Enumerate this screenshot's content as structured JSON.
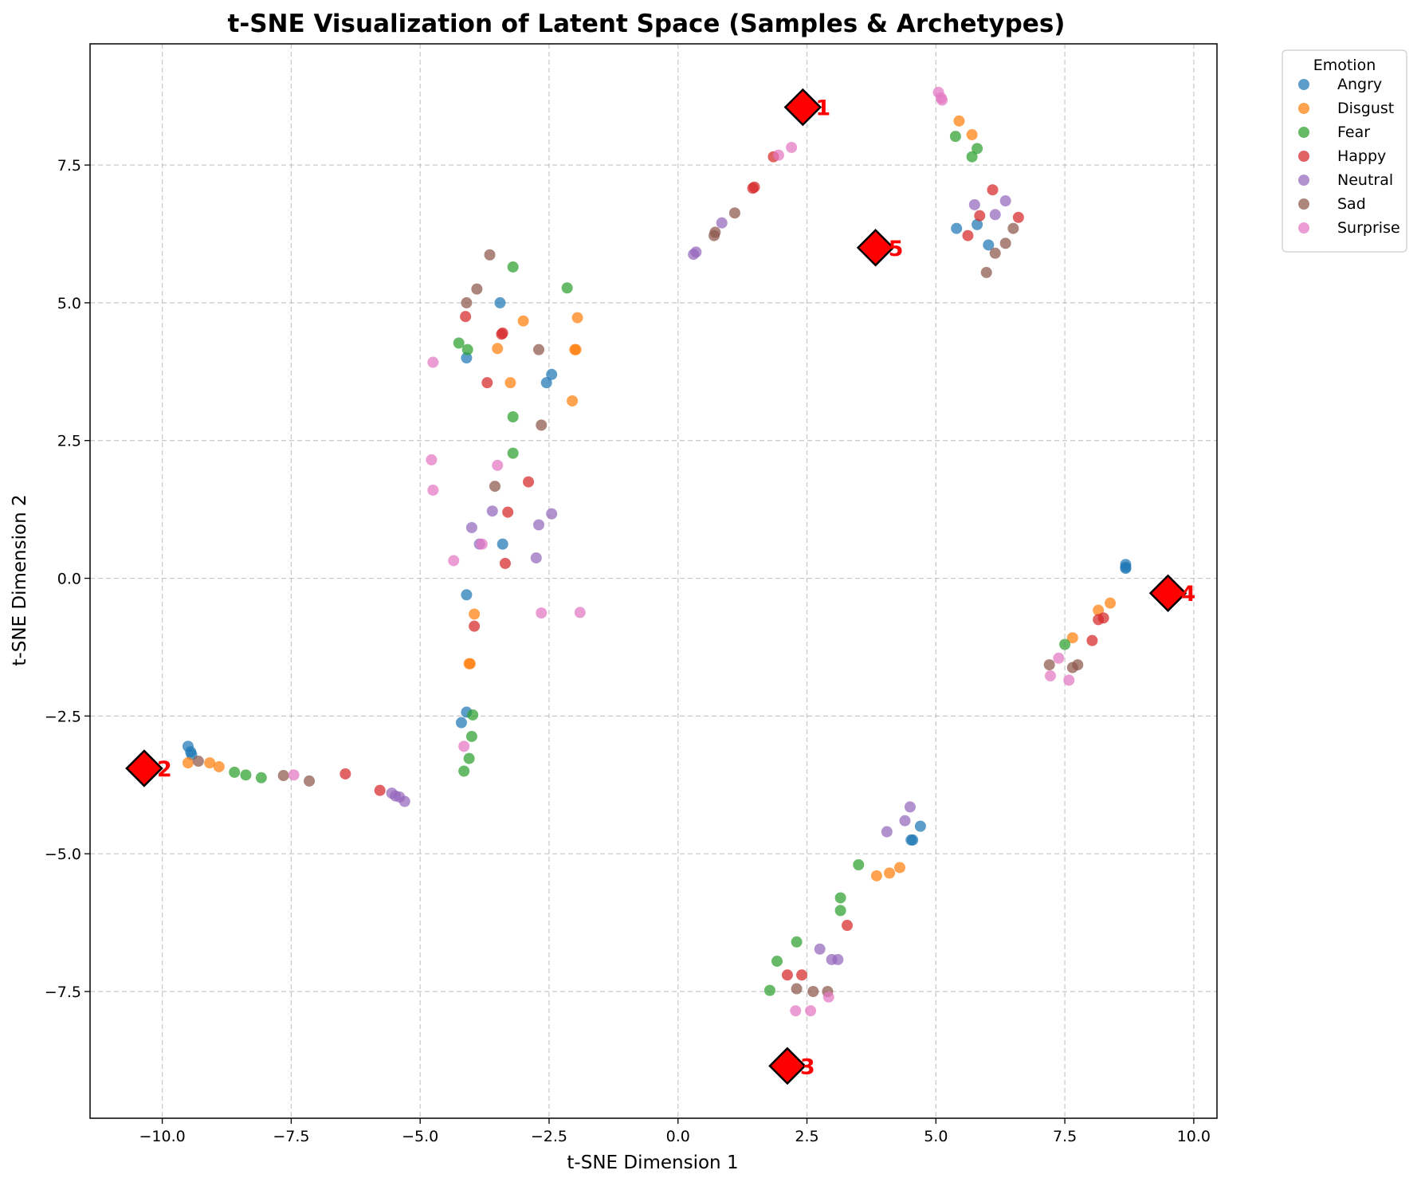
{
  "chart_data": {
    "type": "scatter",
    "title": "t-SNE Visualization of Latent Space (Samples & Archetypes)",
    "xlabel": "t-SNE Dimension 1",
    "ylabel": "t-SNE Dimension 2",
    "xlim": [
      -11.4,
      10.45
    ],
    "ylim": [
      -9.8,
      9.7
    ],
    "xticks": [
      -10.0,
      -7.5,
      -5.0,
      -2.5,
      0.0,
      2.5,
      5.0,
      7.5,
      10.0
    ],
    "yticks": [
      -7.5,
      -5.0,
      -2.5,
      0.0,
      2.5,
      5.0,
      7.5
    ],
    "xtick_labels": [
      "−10.0",
      "−7.5",
      "−5.0",
      "−2.5",
      "0.0",
      "2.5",
      "5.0",
      "7.5",
      "10.0"
    ],
    "ytick_labels": [
      "−7.5",
      "−5.0",
      "−2.5",
      "0.0",
      "2.5",
      "5.0",
      "7.5"
    ],
    "grid": true,
    "legend": {
      "title": "Emotion",
      "placement": "outside-top-right"
    },
    "series": [
      {
        "name": "Angry",
        "color": "#1f77b4",
        "points": [
          [
            -9.5,
            -3.05
          ],
          [
            -9.45,
            -3.15
          ],
          [
            -9.43,
            -3.2
          ],
          [
            -4.1,
            4.0
          ],
          [
            -3.45,
            5.0
          ],
          [
            -2.45,
            3.7
          ],
          [
            -2.55,
            3.55
          ],
          [
            -3.4,
            0.62
          ],
          [
            -4.1,
            -0.3
          ],
          [
            -4.1,
            -2.43
          ],
          [
            -4.2,
            -2.62
          ],
          [
            5.4,
            6.35
          ],
          [
            5.8,
            6.42
          ],
          [
            6.02,
            6.05
          ],
          [
            8.68,
            0.25
          ],
          [
            8.68,
            0.2
          ],
          [
            8.68,
            0.18
          ],
          [
            4.52,
            -4.75
          ],
          [
            4.55,
            -4.75
          ],
          [
            4.7,
            -4.5
          ]
        ]
      },
      {
        "name": "Disgust",
        "color": "#ff7f0e",
        "points": [
          [
            -9.5,
            -3.35
          ],
          [
            -9.08,
            -3.35
          ],
          [
            -8.9,
            -3.42
          ],
          [
            -3.0,
            4.67
          ],
          [
            -3.5,
            4.17
          ],
          [
            -3.25,
            3.55
          ],
          [
            -1.95,
            4.73
          ],
          [
            -2.0,
            4.15
          ],
          [
            -1.98,
            4.15
          ],
          [
            -2.05,
            3.22
          ],
          [
            -3.95,
            -0.65
          ],
          [
            -4.05,
            -1.55
          ],
          [
            -4.03,
            -1.55
          ],
          [
            5.45,
            8.3
          ],
          [
            5.7,
            8.05
          ],
          [
            7.65,
            -1.08
          ],
          [
            8.15,
            -0.58
          ],
          [
            8.38,
            -0.45
          ],
          [
            3.85,
            -5.4
          ],
          [
            4.1,
            -5.35
          ],
          [
            4.3,
            -5.25
          ]
        ]
      },
      {
        "name": "Fear",
        "color": "#2ca02c",
        "points": [
          [
            -8.6,
            -3.52
          ],
          [
            -8.38,
            -3.57
          ],
          [
            -8.08,
            -3.62
          ],
          [
            -3.2,
            5.65
          ],
          [
            -2.15,
            5.27
          ],
          [
            -4.25,
            4.27
          ],
          [
            -4.08,
            4.15
          ],
          [
            -3.2,
            2.93
          ],
          [
            -3.2,
            2.27
          ],
          [
            -3.98,
            -2.48
          ],
          [
            -4.0,
            -2.87
          ],
          [
            -4.05,
            -3.27
          ],
          [
            -4.15,
            -3.5
          ],
          [
            5.38,
            8.02
          ],
          [
            5.8,
            7.8
          ],
          [
            5.7,
            7.65
          ],
          [
            7.5,
            -1.2
          ],
          [
            3.5,
            -5.2
          ],
          [
            3.15,
            -5.8
          ],
          [
            3.15,
            -6.03
          ],
          [
            2.3,
            -6.6
          ],
          [
            1.92,
            -6.95
          ],
          [
            1.78,
            -7.48
          ]
        ]
      },
      {
        "name": "Happy",
        "color": "#d62728",
        "points": [
          [
            -6.45,
            -3.55
          ],
          [
            -5.78,
            -3.85
          ],
          [
            -4.12,
            4.75
          ],
          [
            -3.4,
            4.45
          ],
          [
            -3.42,
            4.43
          ],
          [
            -3.7,
            3.55
          ],
          [
            -2.9,
            1.75
          ],
          [
            -3.3,
            1.2
          ],
          [
            -3.35,
            0.27
          ],
          [
            -3.95,
            -0.87
          ],
          [
            1.45,
            7.08
          ],
          [
            1.48,
            7.1
          ],
          [
            1.85,
            7.65
          ],
          [
            6.1,
            7.05
          ],
          [
            5.85,
            6.58
          ],
          [
            5.62,
            6.22
          ],
          [
            6.6,
            6.55
          ],
          [
            8.03,
            -1.13
          ],
          [
            8.15,
            -0.75
          ],
          [
            8.25,
            -0.72
          ],
          [
            3.28,
            -6.3
          ],
          [
            2.12,
            -7.2
          ],
          [
            2.4,
            -7.2
          ]
        ]
      },
      {
        "name": "Neutral",
        "color": "#9467bd",
        "points": [
          [
            -5.55,
            -3.9
          ],
          [
            -5.48,
            -3.95
          ],
          [
            -5.4,
            -3.97
          ],
          [
            -5.3,
            -4.05
          ],
          [
            -3.6,
            1.22
          ],
          [
            -2.45,
            1.17
          ],
          [
            -2.7,
            0.97
          ],
          [
            -4.0,
            0.92
          ],
          [
            -3.85,
            0.62
          ],
          [
            -2.75,
            0.37
          ],
          [
            0.3,
            5.88
          ],
          [
            0.35,
            5.92
          ],
          [
            0.85,
            6.45
          ],
          [
            5.75,
            6.78
          ],
          [
            6.15,
            6.6
          ],
          [
            6.35,
            6.85
          ],
          [
            4.5,
            -4.15
          ],
          [
            4.4,
            -4.4
          ],
          [
            4.05,
            -4.6
          ],
          [
            2.75,
            -6.73
          ],
          [
            2.98,
            -6.92
          ],
          [
            3.1,
            -6.92
          ]
        ]
      },
      {
        "name": "Sad",
        "color": "#8c564b",
        "points": [
          [
            -9.3,
            -3.32
          ],
          [
            -7.65,
            -3.58
          ],
          [
            -7.15,
            -3.68
          ],
          [
            -3.65,
            5.87
          ],
          [
            -3.9,
            5.25
          ],
          [
            -4.1,
            5.0
          ],
          [
            -2.7,
            4.15
          ],
          [
            -2.65,
            2.78
          ],
          [
            -3.55,
            1.67
          ],
          [
            0.7,
            6.22
          ],
          [
            0.72,
            6.28
          ],
          [
            1.1,
            6.63
          ],
          [
            6.5,
            6.35
          ],
          [
            6.35,
            6.08
          ],
          [
            6.15,
            5.9
          ],
          [
            5.98,
            5.55
          ],
          [
            7.2,
            -1.57
          ],
          [
            7.75,
            -1.57
          ],
          [
            7.65,
            -1.62
          ],
          [
            2.3,
            -7.45
          ],
          [
            2.62,
            -7.5
          ],
          [
            2.9,
            -7.5
          ]
        ]
      },
      {
        "name": "Surprise",
        "color": "#e377c2",
        "points": [
          [
            -7.45,
            -3.57
          ],
          [
            -4.75,
            3.92
          ],
          [
            -4.78,
            2.15
          ],
          [
            -4.75,
            1.6
          ],
          [
            -3.5,
            2.05
          ],
          [
            -3.8,
            0.62
          ],
          [
            -4.35,
            0.32
          ],
          [
            -2.65,
            -0.63
          ],
          [
            -1.9,
            -0.62
          ],
          [
            -4.15,
            -3.05
          ],
          [
            1.95,
            7.68
          ],
          [
            2.2,
            7.82
          ],
          [
            5.05,
            8.82
          ],
          [
            5.1,
            8.72
          ],
          [
            5.12,
            8.68
          ],
          [
            7.38,
            -1.45
          ],
          [
            7.22,
            -1.77
          ],
          [
            7.58,
            -1.85
          ],
          [
            2.28,
            -7.85
          ],
          [
            2.57,
            -7.85
          ],
          [
            2.92,
            -7.6
          ]
        ]
      }
    ],
    "archetypes": [
      {
        "label": "1",
        "x": 2.42,
        "y": 8.55
      },
      {
        "label": "2",
        "x": -10.35,
        "y": -3.45
      },
      {
        "label": "3",
        "x": 2.12,
        "y": -8.85
      },
      {
        "label": "4",
        "x": 9.5,
        "y": -0.27
      },
      {
        "label": "5",
        "x": 3.83,
        "y": 6.0
      }
    ],
    "archetype_color": "#ff0000"
  }
}
